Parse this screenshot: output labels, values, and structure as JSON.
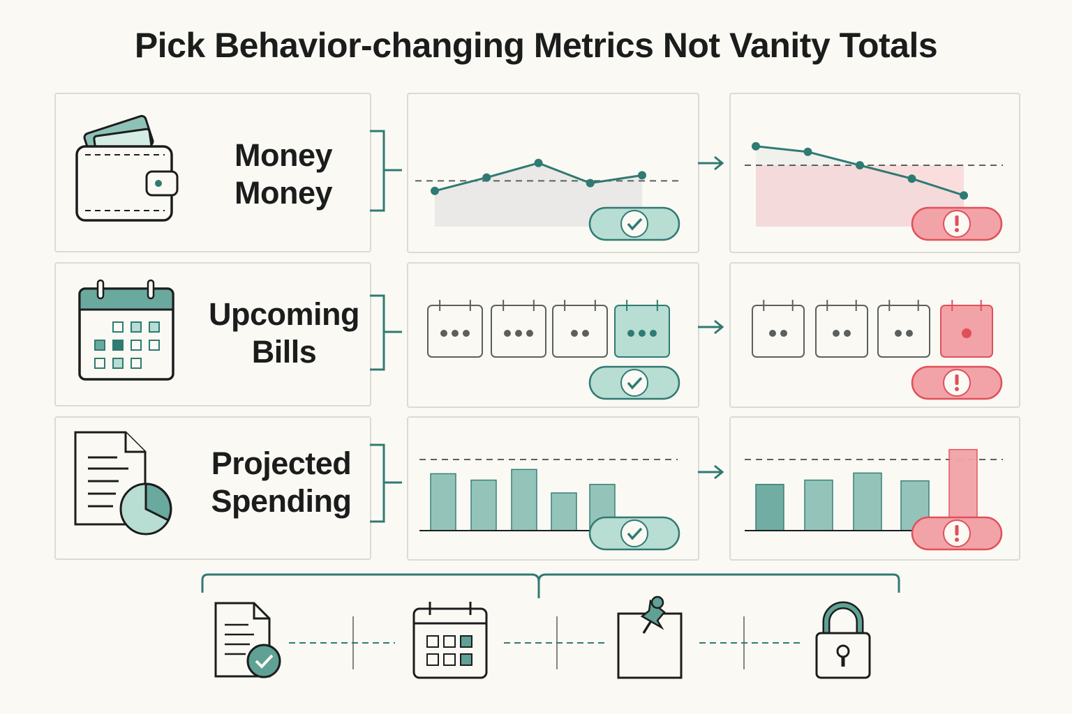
{
  "title": "Pick Behavior-changing Metrics Not Vanity Totals",
  "colors": {
    "teal": "#2f7a72",
    "teal_fill": "#b8ddd3",
    "red": "#e0505a",
    "red_fill": "#f2a3a7",
    "card_border": "#dcdad4",
    "background": "#fbf9f4"
  },
  "rows": [
    {
      "label_lines": [
        "Money",
        "Money"
      ],
      "icon": "wallet-icon",
      "good_status": "check-icon",
      "bad_status": "exclamation-icon",
      "good_chart": {
        "type": "line",
        "values": [
          32,
          44,
          57,
          39,
          46
        ],
        "threshold": 41
      },
      "bad_chart": {
        "type": "line",
        "values": [
          72,
          67,
          55,
          43,
          28
        ],
        "threshold": 55
      }
    },
    {
      "label_lines": [
        "Upcoming",
        "Bills"
      ],
      "icon": "calendar-icon",
      "good_status": "check-icon",
      "bad_status": "exclamation-icon",
      "good_calendar_dots": [
        3,
        3,
        2,
        3
      ],
      "bad_calendar_dots": [
        2,
        2,
        2,
        1
      ]
    },
    {
      "label_lines": [
        "Projected",
        "Spending"
      ],
      "icon": "document-pie-icon",
      "good_status": "check-icon",
      "bad_status": "exclamation-icon",
      "good_chart": {
        "type": "bar",
        "values": [
          80,
          71,
          86,
          53,
          65
        ],
        "threshold": 100
      },
      "bad_chart": {
        "type": "bar",
        "values": [
          65,
          71,
          81,
          70,
          114
        ],
        "threshold": 100
      }
    }
  ],
  "bottom_steps": [
    "document-check-icon",
    "calendar-icon",
    "pinned-note-icon",
    "padlock-icon"
  ]
}
